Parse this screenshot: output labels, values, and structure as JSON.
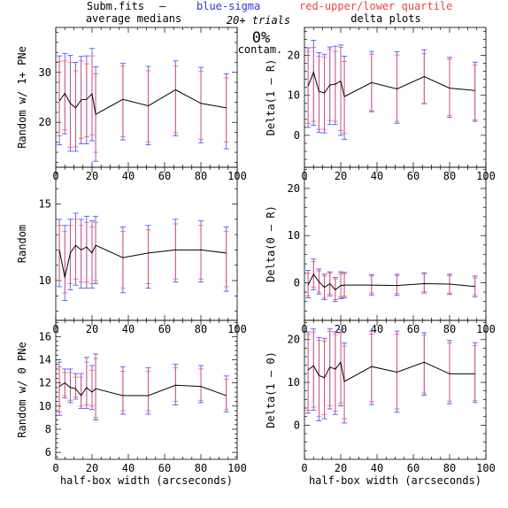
{
  "header": {
    "file": "Subm.fits",
    "dash": "–",
    "blue": "blue-sigma",
    "red": "red-upper/lower quartile",
    "left_title": "average medians",
    "right_title": "delta plots",
    "trials": "20+ trials",
    "percent": "0%",
    "contam": "contam."
  },
  "colors": {
    "sigma": "#5555ff",
    "quartile": "#ff4444",
    "line": "#000000",
    "header_blue": "#3333dd",
    "header_red": "#ee4444"
  },
  "chart_data": [
    {
      "id": "a1",
      "type": "line",
      "ylabel": "Random w/ 1+ PNe",
      "xlabel": "",
      "xlim": [
        0,
        100
      ],
      "ylim": [
        11,
        39
      ],
      "xticks": [
        0,
        20,
        40,
        60,
        80,
        100
      ],
      "yticks": [
        20,
        30
      ],
      "x": [
        2,
        5,
        8,
        11,
        14,
        17,
        20,
        22,
        37,
        51,
        66,
        80,
        94
      ],
      "y": [
        24.3,
        25.8,
        23.8,
        22.9,
        24.5,
        24.6,
        25.7,
        21.6,
        24.6,
        23.3,
        26.5,
        23.8,
        22.9
      ],
      "sigma_lo": [
        15.5,
        17.7,
        14.2,
        14.2,
        15.7,
        15.7,
        16.3,
        12.2,
        16.5,
        15.5,
        17.3,
        15.9,
        14.7
      ],
      "sigma_hi": [
        33.3,
        33.8,
        33.4,
        32.0,
        33.2,
        33.3,
        34.8,
        31.1,
        31.8,
        31.2,
        32.3,
        31.0,
        29.7
      ],
      "q_lo": [
        17.3,
        18.5,
        15.0,
        15.1,
        16.8,
        17.1,
        17.5,
        14.0,
        17.1,
        16.1,
        17.9,
        16.6,
        16.1
      ],
      "q_hi": [
        32.2,
        32.3,
        32.0,
        30.3,
        32.3,
        31.7,
        33.3,
        29.7,
        31.3,
        30.3,
        31.3,
        30.2,
        28.9
      ]
    },
    {
      "id": "b1",
      "type": "line",
      "ylabel": "Delta(1 – R)",
      "xlabel": "",
      "xlim": [
        0,
        100
      ],
      "ylim": [
        -8,
        27
      ],
      "xticks": [
        0,
        20,
        40,
        60,
        80,
        100
      ],
      "yticks": [
        0,
        10,
        20
      ],
      "x": [
        2,
        5,
        8,
        11,
        14,
        17,
        20,
        22,
        37,
        51,
        66,
        80,
        94
      ],
      "y": [
        12.3,
        15.8,
        11.0,
        10.6,
        12.6,
        12.8,
        13.6,
        9.7,
        13.2,
        11.6,
        14.7,
        11.8,
        11.2
      ],
      "sigma_lo": [
        2.0,
        2.5,
        0.7,
        0.6,
        2.7,
        2.7,
        0.0,
        -1.0,
        5.9,
        3.0,
        7.9,
        4.5,
        3.5
      ],
      "sigma_hi": [
        21.9,
        23.8,
        20.7,
        20.3,
        22.1,
        22.3,
        22.6,
        19.8,
        21.0,
        20.9,
        21.4,
        19.5,
        18.3
      ],
      "q_lo": [
        3.0,
        3.5,
        1.5,
        1.5,
        3.7,
        3.5,
        1.2,
        0.5,
        6.2,
        3.5,
        8.0,
        5.0,
        3.9
      ],
      "q_hi": [
        21.0,
        22.0,
        19.8,
        19.5,
        21.5,
        21.0,
        22.0,
        18.5,
        20.3,
        20.1,
        20.5,
        19.0,
        17.6
      ]
    },
    {
      "id": "a2",
      "type": "line",
      "ylabel": "Random",
      "xlabel": "",
      "xlim": [
        0,
        100
      ],
      "ylim": [
        7.4,
        17.4
      ],
      "xticks": [
        0,
        20,
        40,
        60,
        80,
        100
      ],
      "yticks": [
        10,
        15
      ],
      "x": [
        2,
        5,
        8,
        11,
        14,
        17,
        20,
        22,
        37,
        51,
        66,
        80,
        94
      ],
      "y": [
        12.0,
        10.2,
        11.8,
        12.3,
        12.0,
        12.2,
        11.8,
        12.3,
        11.5,
        11.8,
        12.0,
        12.0,
        11.8
      ],
      "sigma_lo": [
        9.6,
        8.7,
        9.4,
        9.7,
        9.5,
        9.5,
        9.5,
        9.8,
        9.2,
        9.5,
        9.9,
        9.9,
        9.3
      ],
      "sigma_hi": [
        14.0,
        13.6,
        14.0,
        14.4,
        14.0,
        14.2,
        13.9,
        14.2,
        13.5,
        13.6,
        14.0,
        13.9,
        13.5
      ],
      "q_lo": [
        10.0,
        9.2,
        9.8,
        10.1,
        9.9,
        9.9,
        9.8,
        10.0,
        9.5,
        9.8,
        10.1,
        10.1,
        9.6
      ],
      "q_hi": [
        13.6,
        13.2,
        13.6,
        14.0,
        13.6,
        13.8,
        13.5,
        13.8,
        13.2,
        13.3,
        13.7,
        13.6,
        13.2
      ]
    },
    {
      "id": "b2",
      "type": "line",
      "ylabel": "Delta(0 – R)",
      "xlabel": "",
      "xlim": [
        0,
        100
      ],
      "ylim": [
        -8,
        24.5
      ],
      "xticks": [
        0,
        20,
        40,
        60,
        80,
        100
      ],
      "yticks": [
        0,
        10,
        20
      ],
      "x": [
        2,
        5,
        8,
        11,
        14,
        17,
        20,
        22,
        37,
        51,
        66,
        80,
        94
      ],
      "y": [
        -0.5,
        1.8,
        0.2,
        -1.0,
        -0.2,
        -1.5,
        -0.6,
        -0.5,
        -0.5,
        -0.6,
        -0.2,
        -0.3,
        -0.8
      ],
      "sigma_lo": [
        -3.2,
        -1.5,
        -2.4,
        -3.6,
        -2.8,
        -4.0,
        -3.4,
        -3.2,
        -2.6,
        -2.7,
        -2.2,
        -2.5,
        -3.0
      ],
      "sigma_hi": [
        2.6,
        5.0,
        2.9,
        1.8,
        2.3,
        1.1,
        2.3,
        2.2,
        1.7,
        1.8,
        2.1,
        1.8,
        1.4
      ],
      "q_lo": [
        -2.8,
        -1.0,
        -2.0,
        -3.2,
        -2.4,
        -3.6,
        -3.0,
        -2.8,
        -2.2,
        -2.3,
        -1.9,
        -2.2,
        -2.6
      ],
      "q_hi": [
        2.0,
        4.5,
        2.5,
        1.4,
        2.0,
        0.8,
        1.9,
        1.9,
        1.4,
        1.5,
        1.8,
        1.5,
        1.0
      ]
    },
    {
      "id": "a3",
      "type": "line",
      "ylabel": "Random w/ 0 PNe",
      "xlabel": "half-box width (arcseconds)",
      "xlim": [
        0,
        100
      ],
      "ylim": [
        5.4,
        17.4
      ],
      "xticks": [
        0,
        20,
        40,
        60,
        80,
        100
      ],
      "yticks": [
        6,
        8,
        10,
        12,
        14,
        16
      ],
      "x": [
        2,
        5,
        8,
        11,
        14,
        17,
        20,
        22,
        37,
        51,
        66,
        80,
        94
      ],
      "y": [
        11.7,
        12.0,
        11.6,
        11.5,
        10.9,
        11.6,
        11.2,
        11.5,
        10.9,
        10.9,
        11.8,
        11.7,
        10.9
      ],
      "sigma_lo": [
        9.2,
        10.7,
        10.3,
        10.6,
        9.8,
        9.8,
        9.7,
        8.8,
        9.3,
        9.3,
        10.1,
        10.3,
        9.5
      ],
      "sigma_hi": [
        13.8,
        13.2,
        13.2,
        12.8,
        12.8,
        14.2,
        13.5,
        14.5,
        13.4,
        13.3,
        13.6,
        13.5,
        12.6
      ],
      "q_lo": [
        9.5,
        10.9,
        10.5,
        10.8,
        10.0,
        10.1,
        10.0,
        9.0,
        9.6,
        9.6,
        10.4,
        10.5,
        9.7
      ],
      "q_hi": [
        13.4,
        12.9,
        12.9,
        12.5,
        12.5,
        13.8,
        13.1,
        14.1,
        13.0,
        13.0,
        13.3,
        13.2,
        12.3
      ]
    },
    {
      "id": "b3",
      "type": "line",
      "ylabel": "Delta(1 – 0)",
      "xlabel": "half-box width (arcseconds)",
      "xlim": [
        0,
        100
      ],
      "ylim": [
        -8,
        24.5
      ],
      "xticks": [
        0,
        20,
        40,
        60,
        80,
        100
      ],
      "yticks": [
        0,
        10,
        20
      ],
      "x": [
        2,
        5,
        8,
        11,
        14,
        17,
        20,
        22,
        37,
        51,
        66,
        80,
        94
      ],
      "y": [
        12.9,
        13.9,
        11.6,
        11.1,
        13.6,
        13.1,
        14.7,
        10.2,
        13.7,
        12.4,
        14.7,
        12.0,
        12.0
      ],
      "sigma_lo": [
        2.8,
        3.5,
        1.0,
        1.5,
        3.8,
        2.5,
        4.5,
        0.5,
        4.8,
        3.0,
        7.0,
        5.0,
        5.3
      ],
      "sigma_hi": [
        21.8,
        22.5,
        20.5,
        20.3,
        22.5,
        21.8,
        22.3,
        19.2,
        22.0,
        22.0,
        21.6,
        19.8,
        19.3
      ],
      "q_lo": [
        3.5,
        4.2,
        2.0,
        2.5,
        4.5,
        3.3,
        5.2,
        1.5,
        5.5,
        3.8,
        7.5,
        5.6,
        5.8
      ],
      "q_hi": [
        21.2,
        21.8,
        19.8,
        19.6,
        21.9,
        21.2,
        21.6,
        18.5,
        21.3,
        21.3,
        21.0,
        19.2,
        18.6
      ]
    }
  ]
}
